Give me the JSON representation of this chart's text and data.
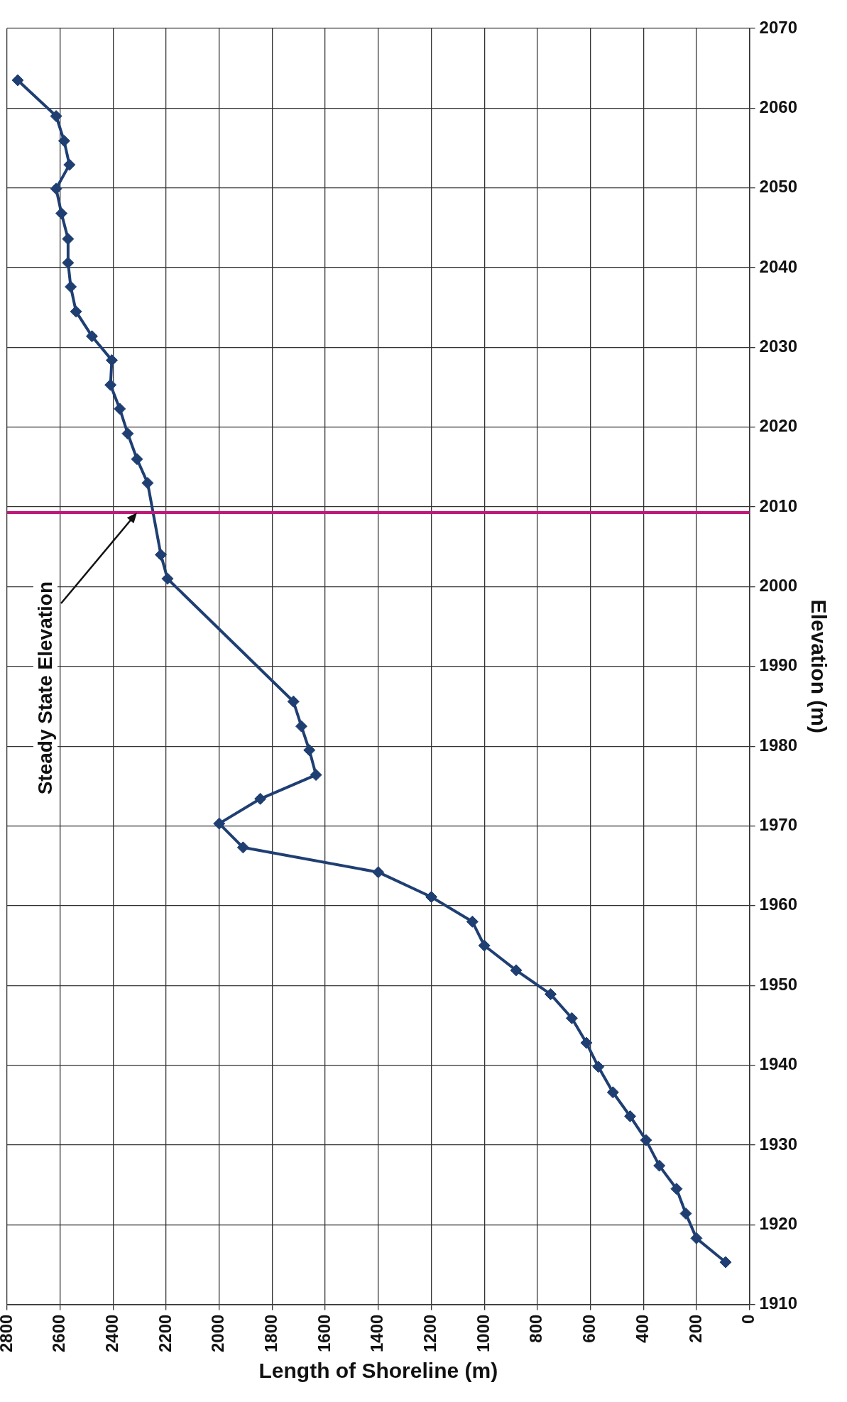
{
  "chart_data": {
    "type": "line",
    "xlabel": "Length of Shoreline (m)",
    "ylabel": "Elevation (m)",
    "x": [
      90,
      200,
      240,
      275,
      340,
      390,
      450,
      515,
      570,
      615,
      670,
      750,
      880,
      1000,
      1045,
      1200,
      1400,
      1910,
      2000,
      1845,
      1635,
      1660,
      1690,
      1720,
      2195,
      2220,
      2270,
      2310,
      2345,
      2375,
      2410,
      2405,
      2480,
      2540,
      2560,
      2570,
      2570,
      2595,
      2615,
      2565,
      2585,
      2615,
      2760
    ],
    "series": [
      {
        "color": "#1f3f73",
        "values": [
          1915.3,
          1918.3,
          1921.4,
          1924.5,
          1927.4,
          1930.6,
          1933.6,
          1936.6,
          1939.8,
          1942.8,
          1945.9,
          1948.9,
          1951.9,
          1955,
          1958,
          1961.1,
          1964.2,
          1967.3,
          1970.3,
          1973.4,
          1976.4,
          1979.5,
          1982.5,
          1985.6,
          2001,
          2004,
          2013,
          2016,
          2019.2,
          2022.3,
          2025.3,
          2028.4,
          2031.4,
          2034.5,
          2037.6,
          2040.6,
          2043.6,
          2046.8,
          2049.9,
          2052.9,
          2055.9,
          2059,
          2063.5
        ]
      }
    ],
    "xlim": [
      2800,
      0
    ],
    "xticks": [
      2800,
      2600,
      2400,
      2200,
      2000,
      1800,
      1600,
      1400,
      1200,
      1000,
      800,
      600,
      400,
      200,
      0
    ],
    "ylim": [
      1910,
      2070
    ],
    "yticks": [
      1910,
      1920,
      1930,
      1940,
      1950,
      1960,
      1970,
      1980,
      1990,
      2000,
      2010,
      2020,
      2030,
      2040,
      2050,
      2060,
      2070
    ],
    "grid": true,
    "legend": false,
    "marker": "diamond",
    "line_style": "solid",
    "ref_lines": [
      {
        "axis": "y",
        "value": 2009.3,
        "label": null,
        "color": "#c0187a"
      }
    ],
    "annotations": [
      {
        "text": "Steady State Elevation",
        "x": 2310,
        "y": 2009.3
      }
    ]
  }
}
